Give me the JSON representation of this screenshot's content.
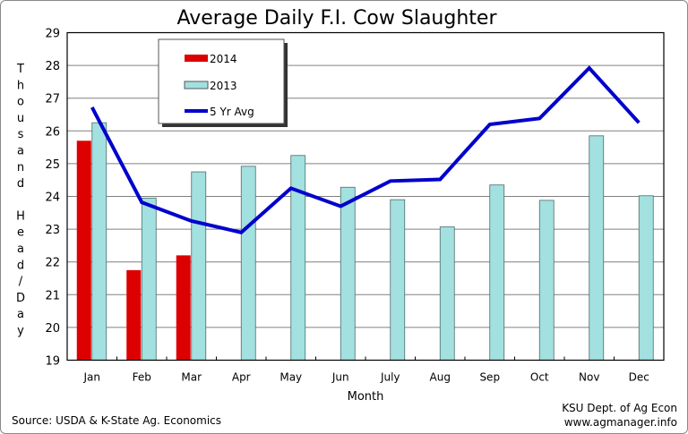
{
  "chart_data": {
    "type": "bar",
    "title": "Average Daily F.I. Cow Slaughter",
    "xlabel": "Month",
    "ylabel": "Thousand Head/Day",
    "ylim": [
      19,
      29
    ],
    "yticks": [
      "19",
      "20",
      "21",
      "22",
      "23",
      "24",
      "25",
      "26",
      "27",
      "28",
      "29"
    ],
    "grid": true,
    "legend_position": "top-left",
    "categories": [
      "Jan",
      "Feb",
      "Mar",
      "Apr",
      "May",
      "Jun",
      "July",
      "Aug",
      "Sep",
      "Oct",
      "Nov",
      "Dec"
    ],
    "series": [
      {
        "name": "2014",
        "type": "bar",
        "color": "#dd0000",
        "values": [
          25.7,
          21.75,
          22.2,
          null,
          null,
          null,
          null,
          null,
          null,
          null,
          null,
          null
        ]
      },
      {
        "name": "2013",
        "type": "bar",
        "color": "#a3e0e0",
        "values": [
          26.25,
          23.95,
          24.75,
          24.92,
          25.25,
          24.28,
          23.9,
          23.07,
          24.35,
          23.88,
          25.85,
          24.02
        ]
      },
      {
        "name": "5 Yr Avg",
        "type": "line",
        "color": "#0000cc",
        "values": [
          26.72,
          23.82,
          23.25,
          22.9,
          24.25,
          23.7,
          24.47,
          24.52,
          26.2,
          26.38,
          27.92,
          26.25
        ]
      }
    ]
  },
  "footer": {
    "source": "Source:  USDA & K-State Ag. Economics",
    "credit_line1": "KSU Dept. of Ag Econ",
    "credit_line2": "www.agmanager.info"
  }
}
